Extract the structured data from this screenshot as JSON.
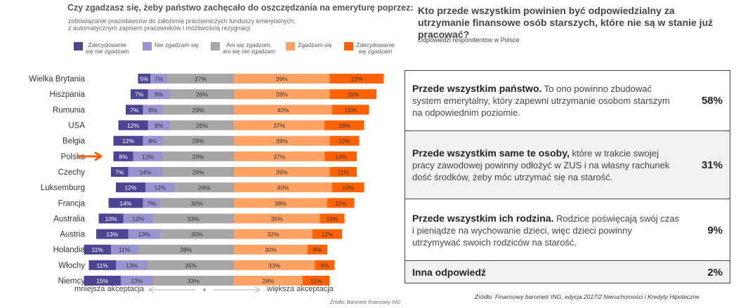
{
  "left": {
    "title": "Czy zgadzasz się, żeby państwo zachęcało do oszczędzania na emeryturę poprzez:",
    "subtitle_line1": "zobowiązanie pracodawców do założenia pracowniczych funduszy emerytalnych,",
    "subtitle_line2": "z automatycznym zapisem pracowników i możliwością rezygnacji",
    "less_label": "mniejsza akceptacja",
    "more_label": "większa akceptacja",
    "source": "Źródło: Barometr finansowy ING",
    "highlighted_country": "Polska"
  },
  "colors": {
    "strongly_disagree": "#4d4494",
    "disagree": "#9993cf",
    "neutral": "#a6a6a6",
    "agree": "#ffa264",
    "strongly_agree": "#ff6200",
    "arrow": "#ff6200"
  },
  "chart_data": {
    "type": "bar",
    "orientation": "horizontal",
    "stacked": "diverging",
    "categories": [
      "Wielka Brytania",
      "Hiszpania",
      "Rumunia",
      "USA",
      "Belgia",
      "Polska",
      "Czechy",
      "Luksemburg",
      "Francja",
      "Australia",
      "Austria",
      "Holandia",
      "Włochy",
      "Niemcy"
    ],
    "series": [
      {
        "name": "Zdecydowanie się nie zgadzam",
        "legend_line1": "Zdecydowanie",
        "legend_line2": "się nie zgadzam",
        "key": "strongly_disagree",
        "values": [
          5,
          7,
          7,
          12,
          12,
          8,
          7,
          12,
          14,
          10,
          13,
          11,
          11,
          15
        ]
      },
      {
        "name": "Nie zgadzam się",
        "legend_line1": "Nie zgadzam się",
        "legend_line2": "",
        "key": "disagree",
        "values": [
          7,
          9,
          8,
          9,
          8,
          12,
          14,
          12,
          7,
          12,
          13,
          11,
          13,
          13
        ]
      },
      {
        "name": "Ani się zgadzam, ani się nie zgadzam",
        "legend_line1": "Ani się zgadzam,",
        "legend_line2": "ani się nie zgadzam",
        "key": "neutral",
        "values": [
          27,
          26,
          29,
          26,
          29,
          29,
          29,
          24,
          30,
          33,
          30,
          39,
          35,
          33
        ]
      },
      {
        "name": "Zgadzam się",
        "legend_line1": "Zgadzam się",
        "legend_line2": "",
        "key": "agree",
        "values": [
          39,
          39,
          40,
          37,
          39,
          37,
          39,
          40,
          38,
          35,
          32,
          30,
          33,
          28
        ]
      },
      {
        "name": "Zdecydowanie się zgadzam",
        "legend_line1": "Zdecydowanie",
        "legend_line2": "się zgadzam",
        "key": "strongly_agree",
        "values": [
          22,
          19,
          15,
          16,
          12,
          13,
          11,
          13,
          11,
          10,
          12,
          8,
          8,
          11
        ]
      }
    ],
    "unit": "%",
    "xlabel": "",
    "ylabel": ""
  },
  "right": {
    "title": "Kto przede wszystkim powinien być odpowiedzialny za utrzymanie finansowe osób starszych, które nie są w stanie już pracować?",
    "subtitle": "Odpowiedzi respondentów w Polsce",
    "answers": [
      {
        "bold": "Przede wszystkim państwo.",
        "text": " To ono powinno zbudować system emerytalny, który zapewni utrzymanie osobom starszym na odpowiednim poziomie.",
        "percent": "58%"
      },
      {
        "bold": "Przede wszystkim same te osoby,",
        "text": " które w trakcie swojej pracy zawodowej powinny odłożyć w ZUS i na własny rachunek dość środków, żeby móc utrzymać się na starość.",
        "percent": "31%"
      },
      {
        "bold": "Przede wszystkim ich rodzina.",
        "text": " Rodzice poświęcają swój czas i pieniądze na wychowanie dzieci, więc dzieci powinny utrzymywać swoich rodziców na starość.",
        "percent": "9%"
      },
      {
        "bold": "Inna odpowiedź",
        "text": "",
        "percent": "2%"
      }
    ],
    "source": "Źródło: Finansowy barometr ING, edycja 2017/2 Nieruchomości i  Kredyty Hipoteczne"
  }
}
